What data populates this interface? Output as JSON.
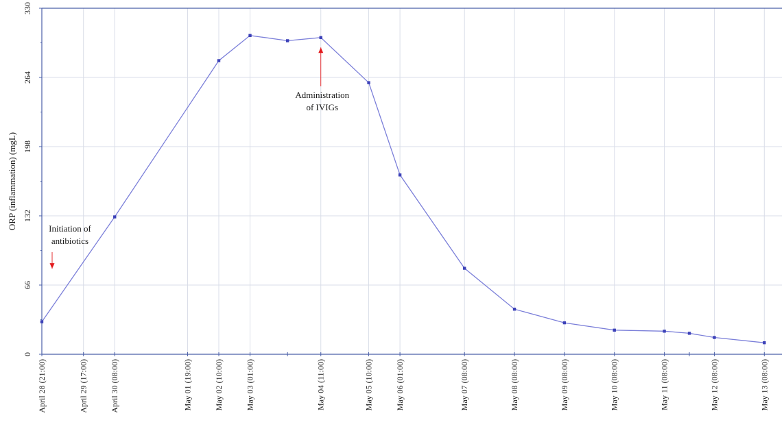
{
  "chart_data": {
    "type": "line",
    "title": "",
    "xlabel": "",
    "ylabel": "ORP (inflammation) (mgL)",
    "ylim": [
      0,
      330
    ],
    "yticks": [
      0,
      66,
      132,
      198,
      264,
      330
    ],
    "grid": true,
    "x_tick_labels": [
      "April 28 (21:00)",
      "April 29 (17:00)",
      "April 30 (08:00)",
      "May 01 (19:00)",
      "May 02 (10:00)",
      "May 03 (01:00)",
      "May 04 (11:00)",
      "May 05 (10:00)",
      "May 06 (01:00)",
      "May 07 (08:00)",
      "May 08 (08:00)",
      "May 09 (08:00)",
      "May 10 (08:00)",
      "May 11 (08:00)",
      "May 12 (08:00)",
      "May 13 (08:00)"
    ],
    "series": [
      {
        "color": "#7b7fd9",
        "points": [
          {
            "x": "2023-04-28T21:00",
            "y": 31
          },
          {
            "x": "2023-04-30T08:00",
            "y": 131
          },
          {
            "x": "2023-05-02T10:00",
            "y": 280
          },
          {
            "x": "2023-05-03T01:00",
            "y": 304
          },
          {
            "x": "2023-05-03T19:00",
            "y": 299
          },
          {
            "x": "2023-05-04T11:00",
            "y": 302
          },
          {
            "x": "2023-05-05T10:00",
            "y": 259
          },
          {
            "x": "2023-05-06T01:00",
            "y": 171
          },
          {
            "x": "2023-05-07T08:00",
            "y": 82
          },
          {
            "x": "2023-05-08T08:00",
            "y": 43
          },
          {
            "x": "2023-05-09T08:00",
            "y": 30
          },
          {
            "x": "2023-05-10T08:00",
            "y": 23
          },
          {
            "x": "2023-05-11T08:00",
            "y": 22
          },
          {
            "x": "2023-05-11T20:00",
            "y": 20
          },
          {
            "x": "2023-05-12T08:00",
            "y": 16
          },
          {
            "x": "2023-05-13T08:00",
            "y": 11
          }
        ]
      }
    ],
    "annotations": [
      {
        "lines": [
          "Initiation of",
          "antibiotics"
        ],
        "arrow_color": "#e31a1c",
        "target": {
          "x": "2023-04-28T21:00",
          "y": 60
        }
      },
      {
        "lines": [
          "Administration",
          "of IVIGs"
        ],
        "arrow_color": "#e31a1c",
        "target": {
          "x": "2023-05-04T11:00",
          "y": 290
        }
      }
    ],
    "colors": {
      "line": "#7b7fd9",
      "marker": "#3c41b8",
      "grid": "#d9dde8",
      "axis": "#4a5fa8",
      "arrow": "#e31a1c"
    }
  }
}
